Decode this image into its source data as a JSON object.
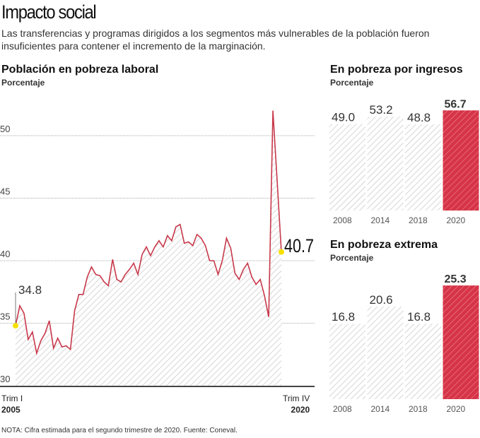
{
  "title": "Impacto social",
  "subtitle": "Las transferencias y programas dirigidos a los segmentos más vulnerables de la población fueron insuficientes para contener el incremento de la marginación.",
  "note": "NOTA: Cifra estimada para el segundo trimestre de 2020. Fuente: Coneval.",
  "colors": {
    "line": "#c8384a",
    "highlight": "#d63447",
    "hatch": "#c9c9c9",
    "marker": "#f5e000"
  },
  "chart_data": [
    {
      "type": "line",
      "title": "Población en pobreza laboral",
      "ylabel": "Porcentaje",
      "ylim": [
        30,
        52
      ],
      "yticks": [
        30,
        35,
        40,
        45,
        50
      ],
      "grid": true,
      "x_start_label": [
        "Trim I",
        "2005"
      ],
      "x_end_label": [
        "Trim IV",
        "2020"
      ],
      "annotations": [
        {
          "label": "34.8",
          "index": 0
        },
        {
          "label": "40.7",
          "index": 63
        }
      ],
      "values": [
        34.8,
        36.4,
        35.8,
        33.7,
        34.3,
        32.6,
        33.6,
        34.2,
        35.2,
        33.0,
        33.8,
        33.1,
        33.2,
        32.9,
        36.0,
        37.3,
        37.3,
        38.7,
        39.5,
        38.9,
        38.8,
        38.3,
        38.0,
        40.1,
        38.5,
        38.3,
        38.9,
        39.3,
        39.8,
        38.9,
        40.5,
        41.1,
        40.4,
        41.1,
        41.6,
        41.1,
        42.0,
        41.6,
        42.7,
        42.9,
        41.4,
        41.5,
        41.2,
        42.1,
        41.8,
        41.2,
        40.0,
        40.0,
        38.9,
        40.0,
        41.8,
        41.0,
        39.0,
        38.5,
        39.3,
        39.8,
        38.7,
        38.1,
        38.5,
        37.2,
        35.5,
        52.0,
        46.4,
        40.7
      ]
    },
    {
      "type": "bar",
      "title": "En pobreza por ingresos",
      "ylabel": "Porcentaje",
      "categories": [
        "2008",
        "2014",
        "2018",
        "2020"
      ],
      "values": [
        49.0,
        53.2,
        48.8,
        56.7
      ],
      "labels": [
        "49.0",
        "53.2",
        "48.8",
        "56.7"
      ],
      "highlight": "2020"
    },
    {
      "type": "bar",
      "title": "En pobreza extrema",
      "ylabel": "Porcentaje",
      "categories": [
        "2008",
        "2014",
        "2018",
        "2020"
      ],
      "values": [
        16.8,
        20.6,
        16.8,
        25.3
      ],
      "labels": [
        "16.8",
        "20.6",
        "16.8",
        "25.3"
      ],
      "highlight": "2020"
    }
  ]
}
